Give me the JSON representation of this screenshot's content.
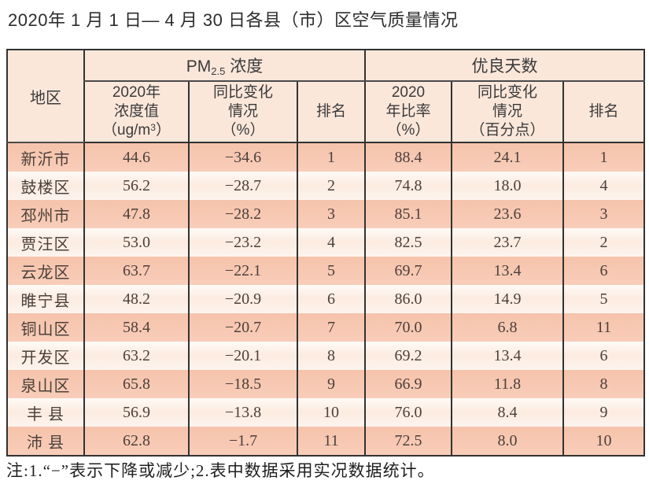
{
  "page_title": "2020年 1 月 1 日— 4 月 30 日各县（市）区空气质量情况",
  "colors": {
    "header_bg": "#fbe7da",
    "row_odd": "#f7c8b2",
    "row_even": "#fdf0e8",
    "border": "#323232",
    "title_text": "#2d2d2d",
    "cell_text": "#4b403b"
  },
  "table": {
    "header": {
      "region": "地区",
      "pm_group": {
        "prefix": "PM",
        "sub": "2.5",
        "suffix": " 浓度"
      },
      "good_days_group": "优良天数",
      "conc": {
        "l1": "2020年",
        "l2": "浓度值",
        "unit_prefix": "（ug/m",
        "unit_sup": "3",
        "unit_suffix": "）"
      },
      "pm_change": {
        "l1": "同比变化",
        "l2": "情况",
        "l3": "（%）"
      },
      "pm_rank": "排名",
      "ratio": {
        "l1": "2020",
        "l2": "年比率",
        "l3": "（%）"
      },
      "days_change": {
        "l1": "同比变化",
        "l2": "情况",
        "l3": "（百分点）"
      },
      "days_rank": "排名"
    },
    "rows": [
      {
        "region": "新沂市",
        "pm_value": "44.6",
        "pm_change": "−34.6",
        "pm_rank": "1",
        "days_ratio": "88.4",
        "days_change": "24.1",
        "days_rank": "1"
      },
      {
        "region": "鼓楼区",
        "pm_value": "56.2",
        "pm_change": "−28.7",
        "pm_rank": "2",
        "days_ratio": "74.8",
        "days_change": "18.0",
        "days_rank": "4"
      },
      {
        "region": "邳州市",
        "pm_value": "47.8",
        "pm_change": "−28.2",
        "pm_rank": "3",
        "days_ratio": "85.1",
        "days_change": "23.6",
        "days_rank": "3"
      },
      {
        "region": "贾汪区",
        "pm_value": "53.0",
        "pm_change": "−23.2",
        "pm_rank": "4",
        "days_ratio": "82.5",
        "days_change": "23.7",
        "days_rank": "2"
      },
      {
        "region": "云龙区",
        "pm_value": "63.7",
        "pm_change": "−22.1",
        "pm_rank": "5",
        "days_ratio": "69.7",
        "days_change": "13.4",
        "days_rank": "6"
      },
      {
        "region": "睢宁县",
        "pm_value": "48.2",
        "pm_change": "−20.9",
        "pm_rank": "6",
        "days_ratio": "86.0",
        "days_change": "14.9",
        "days_rank": "5"
      },
      {
        "region": "铜山区",
        "pm_value": "58.4",
        "pm_change": "−20.7",
        "pm_rank": "7",
        "days_ratio": "70.0",
        "days_change": "6.8",
        "days_rank": "11"
      },
      {
        "region": "开发区",
        "pm_value": "63.2",
        "pm_change": "−20.1",
        "pm_rank": "8",
        "days_ratio": "69.2",
        "days_change": "13.4",
        "days_rank": "6"
      },
      {
        "region": "泉山区",
        "pm_value": "65.8",
        "pm_change": "−18.5",
        "pm_rank": "9",
        "days_ratio": "66.9",
        "days_change": "11.8",
        "days_rank": "8"
      },
      {
        "region": "丰 县",
        "pm_value": "56.9",
        "pm_change": "−13.8",
        "pm_rank": "10",
        "days_ratio": "76.0",
        "days_change": "8.4",
        "days_rank": "9"
      },
      {
        "region": "沛 县",
        "pm_value": "62.8",
        "pm_change": "−1.7",
        "pm_rank": "11",
        "days_ratio": "72.5",
        "days_change": "8.0",
        "days_rank": "10"
      }
    ]
  },
  "footnote": "注:1.“−”表示下降或减少;2.表中数据采用实况数据统计。"
}
